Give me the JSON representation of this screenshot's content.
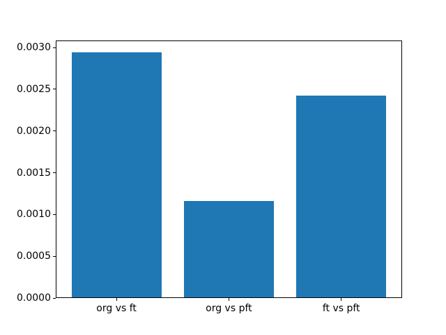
{
  "chart_data": {
    "type": "bar",
    "title": "",
    "xlabel": "",
    "ylabel": "",
    "categories": [
      "org vs ft",
      "org vs pft",
      "ft vs pft"
    ],
    "values": [
      0.00294,
      0.00116,
      0.00242
    ],
    "bar_color": "#1f77b4",
    "bar_width_fraction": 0.8,
    "xlim": [
      -0.54,
      2.54
    ],
    "ylim": [
      0,
      0.003087
    ],
    "yticks": [
      0.0,
      0.0005,
      0.001,
      0.0015,
      0.002,
      0.0025,
      0.003
    ],
    "ytick_labels": [
      "0.0000",
      "0.0005",
      "0.0010",
      "0.0015",
      "0.0020",
      "0.0025",
      "0.0030"
    ],
    "grid": false,
    "legend": null,
    "background_color": "#ffffff",
    "axis_color": "#000000"
  }
}
